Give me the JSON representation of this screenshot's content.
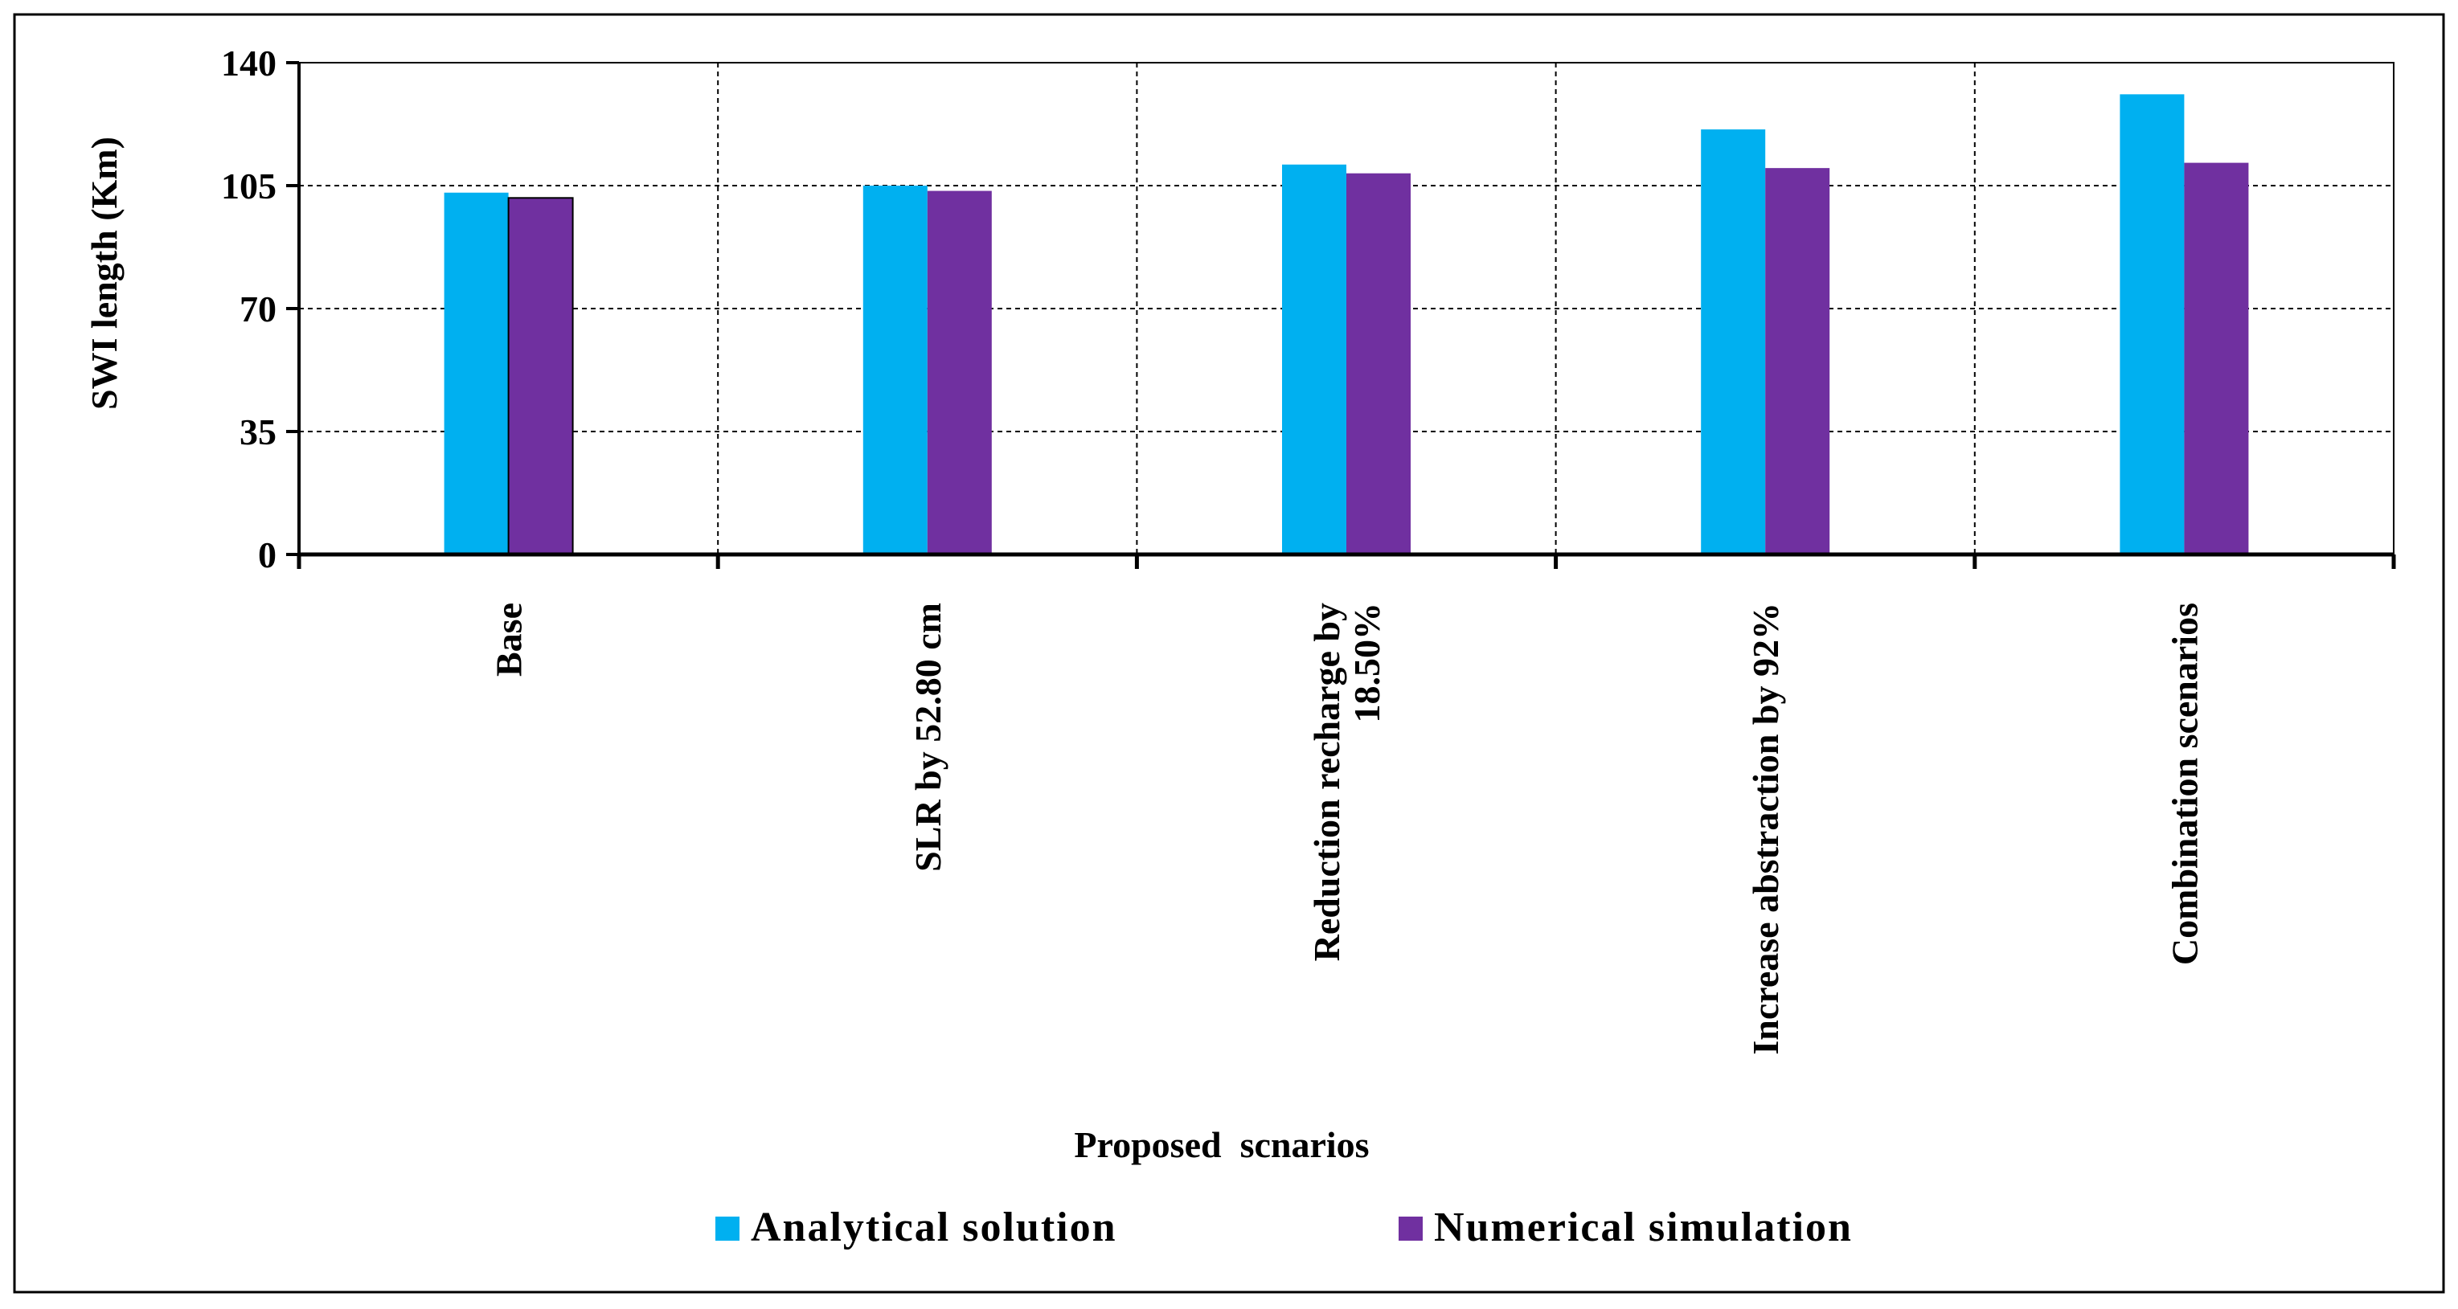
{
  "chart_data": {
    "type": "bar",
    "title": "",
    "xlabel": "Proposed  scnarios",
    "ylabel": "SWI length (Km)",
    "ylim": [
      0,
      140
    ],
    "yticks": [
      0,
      35,
      70,
      105,
      140
    ],
    "grid": true,
    "legend_position": "bottom",
    "categories": [
      [
        "Base"
      ],
      [
        "SLR by 52.80 cm"
      ],
      [
        "Reduction recharge by",
        "18.50%"
      ],
      [
        "Increase abstraction by 92%"
      ],
      [
        "Combination scenarios"
      ]
    ],
    "series": [
      {
        "name": "Analytical solution",
        "color": "#00B0F0",
        "values": [
          103,
          105,
          111,
          121,
          131
        ]
      },
      {
        "name": "Numerical simulation",
        "color": "#7030A0",
        "values": [
          101.5,
          103.5,
          108.5,
          110,
          111.5
        ]
      }
    ]
  }
}
